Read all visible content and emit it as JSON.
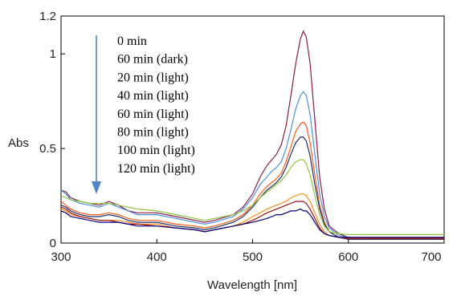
{
  "chart_data": {
    "type": "line",
    "xlabel": "Wavelength [nm]",
    "ylabel": "Abs",
    "xlim": [
      300,
      700
    ],
    "ylim": [
      0,
      1.2
    ],
    "x_ticks": [
      "300",
      "400",
      "500",
      "600",
      "700"
    ],
    "y_ticks": [
      "0",
      "0.5",
      "1",
      "1.2"
    ],
    "grid": false,
    "legend_position": "top-left",
    "annotation": "downward arrow indicating decreasing absorbance over time",
    "arrow_color": "#4f86c6",
    "series": [
      {
        "name": "0 min",
        "color": "#8b1a4a",
        "points": [
          [
            300,
            0.28
          ],
          [
            305,
            0.27
          ],
          [
            310,
            0.24
          ],
          [
            320,
            0.22
          ],
          [
            330,
            0.21
          ],
          [
            340,
            0.2
          ],
          [
            350,
            0.22
          ],
          [
            360,
            0.2
          ],
          [
            370,
            0.17
          ],
          [
            380,
            0.16
          ],
          [
            400,
            0.16
          ],
          [
            420,
            0.14
          ],
          [
            440,
            0.12
          ],
          [
            450,
            0.11
          ],
          [
            460,
            0.12
          ],
          [
            480,
            0.15
          ],
          [
            490,
            0.19
          ],
          [
            500,
            0.26
          ],
          [
            508,
            0.35
          ],
          [
            515,
            0.41
          ],
          [
            520,
            0.44
          ],
          [
            525,
            0.47
          ],
          [
            530,
            0.52
          ],
          [
            535,
            0.62
          ],
          [
            540,
            0.78
          ],
          [
            545,
            0.95
          ],
          [
            550,
            1.08
          ],
          [
            553,
            1.12
          ],
          [
            556,
            1.09
          ],
          [
            560,
            0.95
          ],
          [
            565,
            0.65
          ],
          [
            570,
            0.35
          ],
          [
            575,
            0.18
          ],
          [
            580,
            0.09
          ],
          [
            590,
            0.05
          ],
          [
            600,
            0.03
          ],
          [
            620,
            0.025
          ],
          [
            650,
            0.025
          ],
          [
            700,
            0.025
          ]
        ]
      },
      {
        "name": "60 min (dark)",
        "color": "#4c8fe0",
        "points": [
          [
            300,
            0.28
          ],
          [
            305,
            0.26
          ],
          [
            310,
            0.23
          ],
          [
            320,
            0.21
          ],
          [
            330,
            0.2
          ],
          [
            340,
            0.19
          ],
          [
            350,
            0.21
          ],
          [
            360,
            0.19
          ],
          [
            370,
            0.17
          ],
          [
            380,
            0.15
          ],
          [
            400,
            0.15
          ],
          [
            420,
            0.13
          ],
          [
            440,
            0.11
          ],
          [
            450,
            0.1
          ],
          [
            460,
            0.11
          ],
          [
            480,
            0.14
          ],
          [
            490,
            0.18
          ],
          [
            500,
            0.24
          ],
          [
            508,
            0.31
          ],
          [
            515,
            0.35
          ],
          [
            520,
            0.38
          ],
          [
            525,
            0.4
          ],
          [
            530,
            0.43
          ],
          [
            535,
            0.5
          ],
          [
            540,
            0.6
          ],
          [
            545,
            0.71
          ],
          [
            550,
            0.78
          ],
          [
            553,
            0.8
          ],
          [
            556,
            0.78
          ],
          [
            560,
            0.68
          ],
          [
            565,
            0.47
          ],
          [
            570,
            0.26
          ],
          [
            575,
            0.14
          ],
          [
            580,
            0.08
          ],
          [
            590,
            0.04
          ],
          [
            600,
            0.03
          ],
          [
            620,
            0.025
          ],
          [
            650,
            0.025
          ],
          [
            700,
            0.025
          ]
        ]
      },
      {
        "name": "20 min (light)",
        "color": "#ff5a14",
        "points": [
          [
            300,
            0.22
          ],
          [
            305,
            0.2
          ],
          [
            310,
            0.18
          ],
          [
            320,
            0.16
          ],
          [
            330,
            0.15
          ],
          [
            340,
            0.15
          ],
          [
            350,
            0.16
          ],
          [
            360,
            0.15
          ],
          [
            370,
            0.13
          ],
          [
            380,
            0.12
          ],
          [
            400,
            0.12
          ],
          [
            420,
            0.1
          ],
          [
            440,
            0.09
          ],
          [
            450,
            0.08
          ],
          [
            460,
            0.09
          ],
          [
            480,
            0.12
          ],
          [
            490,
            0.15
          ],
          [
            500,
            0.2
          ],
          [
            508,
            0.26
          ],
          [
            515,
            0.3
          ],
          [
            520,
            0.32
          ],
          [
            525,
            0.34
          ],
          [
            530,
            0.37
          ],
          [
            535,
            0.43
          ],
          [
            540,
            0.51
          ],
          [
            545,
            0.59
          ],
          [
            550,
            0.63
          ],
          [
            553,
            0.64
          ],
          [
            556,
            0.62
          ],
          [
            560,
            0.53
          ],
          [
            565,
            0.36
          ],
          [
            570,
            0.2
          ],
          [
            575,
            0.11
          ],
          [
            580,
            0.06
          ],
          [
            590,
            0.03
          ],
          [
            600,
            0.02
          ],
          [
            620,
            0.02
          ],
          [
            650,
            0.02
          ],
          [
            700,
            0.02
          ]
        ]
      },
      {
        "name": "40 min (light)",
        "color": "#1a2f6b",
        "points": [
          [
            300,
            0.2
          ],
          [
            305,
            0.19
          ],
          [
            310,
            0.17
          ],
          [
            320,
            0.15
          ],
          [
            330,
            0.14
          ],
          [
            340,
            0.14
          ],
          [
            350,
            0.15
          ],
          [
            360,
            0.14
          ],
          [
            370,
            0.12
          ],
          [
            380,
            0.11
          ],
          [
            400,
            0.11
          ],
          [
            420,
            0.09
          ],
          [
            440,
            0.08
          ],
          [
            450,
            0.07
          ],
          [
            460,
            0.08
          ],
          [
            480,
            0.11
          ],
          [
            490,
            0.14
          ],
          [
            500,
            0.19
          ],
          [
            508,
            0.24
          ],
          [
            515,
            0.28
          ],
          [
            520,
            0.3
          ],
          [
            525,
            0.32
          ],
          [
            530,
            0.35
          ],
          [
            535,
            0.4
          ],
          [
            540,
            0.47
          ],
          [
            545,
            0.53
          ],
          [
            550,
            0.56
          ],
          [
            553,
            0.56
          ],
          [
            556,
            0.54
          ],
          [
            560,
            0.46
          ],
          [
            565,
            0.31
          ],
          [
            570,
            0.18
          ],
          [
            575,
            0.1
          ],
          [
            580,
            0.06
          ],
          [
            590,
            0.03
          ],
          [
            600,
            0.02
          ],
          [
            620,
            0.02
          ],
          [
            650,
            0.02
          ],
          [
            700,
            0.02
          ]
        ]
      },
      {
        "name": "60 min (light)",
        "color": "#8ec63f",
        "points": [
          [
            300,
            0.25
          ],
          [
            305,
            0.24
          ],
          [
            310,
            0.23
          ],
          [
            320,
            0.22
          ],
          [
            330,
            0.21
          ],
          [
            340,
            0.21
          ],
          [
            350,
            0.21
          ],
          [
            360,
            0.2
          ],
          [
            370,
            0.19
          ],
          [
            380,
            0.18
          ],
          [
            400,
            0.17
          ],
          [
            420,
            0.15
          ],
          [
            440,
            0.13
          ],
          [
            450,
            0.12
          ],
          [
            460,
            0.13
          ],
          [
            480,
            0.15
          ],
          [
            490,
            0.17
          ],
          [
            500,
            0.2
          ],
          [
            508,
            0.24
          ],
          [
            515,
            0.27
          ],
          [
            520,
            0.29
          ],
          [
            525,
            0.31
          ],
          [
            530,
            0.33
          ],
          [
            535,
            0.36
          ],
          [
            540,
            0.4
          ],
          [
            545,
            0.43
          ],
          [
            550,
            0.44
          ],
          [
            553,
            0.44
          ],
          [
            556,
            0.42
          ],
          [
            560,
            0.36
          ],
          [
            565,
            0.25
          ],
          [
            570,
            0.15
          ],
          [
            575,
            0.09
          ],
          [
            580,
            0.06
          ],
          [
            590,
            0.05
          ],
          [
            600,
            0.045
          ],
          [
            620,
            0.045
          ],
          [
            650,
            0.045
          ],
          [
            700,
            0.045
          ]
        ]
      },
      {
        "name": "80 min (light)",
        "color": "#ff8c1a",
        "points": [
          [
            300,
            0.18
          ],
          [
            305,
            0.17
          ],
          [
            310,
            0.15
          ],
          [
            320,
            0.14
          ],
          [
            330,
            0.13
          ],
          [
            340,
            0.12
          ],
          [
            350,
            0.12
          ],
          [
            360,
            0.12
          ],
          [
            370,
            0.11
          ],
          [
            380,
            0.1
          ],
          [
            400,
            0.1
          ],
          [
            420,
            0.08
          ],
          [
            440,
            0.07
          ],
          [
            450,
            0.06
          ],
          [
            460,
            0.07
          ],
          [
            480,
            0.09
          ],
          [
            490,
            0.11
          ],
          [
            500,
            0.14
          ],
          [
            508,
            0.16
          ],
          [
            515,
            0.18
          ],
          [
            520,
            0.19
          ],
          [
            525,
            0.2
          ],
          [
            530,
            0.21
          ],
          [
            535,
            0.22
          ],
          [
            540,
            0.24
          ],
          [
            545,
            0.25
          ],
          [
            550,
            0.26
          ],
          [
            553,
            0.26
          ],
          [
            556,
            0.25
          ],
          [
            560,
            0.22
          ],
          [
            565,
            0.16
          ],
          [
            570,
            0.1
          ],
          [
            575,
            0.06
          ],
          [
            580,
            0.04
          ],
          [
            590,
            0.03
          ],
          [
            600,
            0.025
          ],
          [
            620,
            0.025
          ],
          [
            650,
            0.025
          ],
          [
            700,
            0.025
          ]
        ]
      },
      {
        "name": "100 min (light)",
        "color": "#a01010",
        "points": [
          [
            300,
            0.19
          ],
          [
            305,
            0.18
          ],
          [
            310,
            0.16
          ],
          [
            320,
            0.14
          ],
          [
            330,
            0.13
          ],
          [
            340,
            0.12
          ],
          [
            350,
            0.12
          ],
          [
            360,
            0.11
          ],
          [
            370,
            0.1
          ],
          [
            380,
            0.1
          ],
          [
            400,
            0.09
          ],
          [
            420,
            0.08
          ],
          [
            440,
            0.07
          ],
          [
            450,
            0.06
          ],
          [
            460,
            0.07
          ],
          [
            480,
            0.09
          ],
          [
            490,
            0.1
          ],
          [
            500,
            0.12
          ],
          [
            508,
            0.14
          ],
          [
            515,
            0.16
          ],
          [
            520,
            0.17
          ],
          [
            525,
            0.18
          ],
          [
            530,
            0.19
          ],
          [
            535,
            0.2
          ],
          [
            540,
            0.21
          ],
          [
            545,
            0.22
          ],
          [
            550,
            0.22
          ],
          [
            553,
            0.22
          ],
          [
            556,
            0.21
          ],
          [
            560,
            0.18
          ],
          [
            565,
            0.13
          ],
          [
            570,
            0.08
          ],
          [
            575,
            0.05
          ],
          [
            580,
            0.04
          ],
          [
            590,
            0.03
          ],
          [
            600,
            0.025
          ],
          [
            620,
            0.025
          ],
          [
            650,
            0.025
          ],
          [
            700,
            0.025
          ]
        ]
      },
      {
        "name": "120 min (light)",
        "color": "#000080",
        "points": [
          [
            300,
            0.17
          ],
          [
            305,
            0.16
          ],
          [
            310,
            0.14
          ],
          [
            320,
            0.13
          ],
          [
            330,
            0.12
          ],
          [
            340,
            0.11
          ],
          [
            350,
            0.11
          ],
          [
            360,
            0.11
          ],
          [
            370,
            0.1
          ],
          [
            380,
            0.09
          ],
          [
            400,
            0.09
          ],
          [
            420,
            0.08
          ],
          [
            440,
            0.07
          ],
          [
            450,
            0.06
          ],
          [
            460,
            0.07
          ],
          [
            480,
            0.09
          ],
          [
            490,
            0.1
          ],
          [
            500,
            0.11
          ],
          [
            508,
            0.12
          ],
          [
            515,
            0.13
          ],
          [
            520,
            0.14
          ],
          [
            525,
            0.15
          ],
          [
            530,
            0.15
          ],
          [
            535,
            0.16
          ],
          [
            540,
            0.17
          ],
          [
            545,
            0.17
          ],
          [
            550,
            0.18
          ],
          [
            553,
            0.17
          ],
          [
            556,
            0.17
          ],
          [
            560,
            0.15
          ],
          [
            565,
            0.11
          ],
          [
            570,
            0.07
          ],
          [
            575,
            0.05
          ],
          [
            580,
            0.04
          ],
          [
            590,
            0.03
          ],
          [
            600,
            0.03
          ],
          [
            620,
            0.03
          ],
          [
            650,
            0.03
          ],
          [
            700,
            0.03
          ]
        ]
      }
    ]
  }
}
